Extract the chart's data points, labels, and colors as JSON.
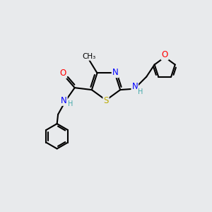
{
  "bg_color": "#e8eaec",
  "atom_colors": {
    "C": "#000000",
    "N": "#0000ff",
    "O": "#ff0000",
    "S": "#bbaa00",
    "H": "#44aaaa"
  },
  "bond_color": "#000000",
  "bond_width": 1.5
}
